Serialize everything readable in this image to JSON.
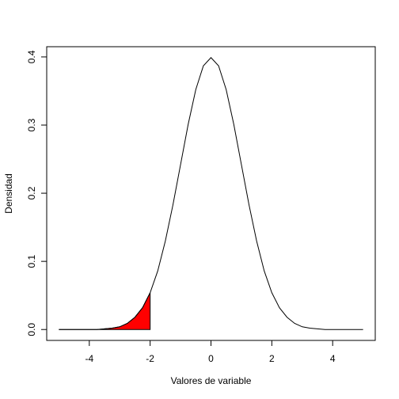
{
  "chart_data": {
    "type": "line",
    "xlabel": "Valores de variable",
    "ylabel": "Densidad",
    "x": [
      -5,
      -4.75,
      -4.5,
      -4.25,
      -4,
      -3.75,
      -3.5,
      -3.25,
      -3,
      -2.75,
      -2.5,
      -2.25,
      -2,
      -1.75,
      -1.5,
      -1.25,
      -1,
      -0.75,
      -0.5,
      -0.25,
      0,
      0.25,
      0.5,
      0.75,
      1,
      1.25,
      1.5,
      1.75,
      2,
      2.25,
      2.5,
      2.75,
      3,
      3.25,
      3.5,
      3.75,
      4,
      4.25,
      4.5,
      4.75,
      5
    ],
    "values": [
      0,
      0,
      0,
      0,
      0,
      0,
      0.001,
      0.002,
      0.004,
      0.009,
      0.018,
      0.032,
      0.054,
      0.086,
      0.13,
      0.183,
      0.242,
      0.301,
      0.352,
      0.387,
      0.399,
      0.387,
      0.352,
      0.301,
      0.242,
      0.183,
      0.13,
      0.086,
      0.054,
      0.032,
      0.018,
      0.009,
      0.004,
      0.002,
      0.001,
      0,
      0,
      0,
      0,
      0,
      0
    ],
    "color": "#000000",
    "shade_to": -2,
    "shade_color": "#ff0000",
    "xlim": [
      -5.4,
      5.4
    ],
    "xticks": [
      -4,
      -2,
      0,
      2,
      4
    ],
    "ylim": [
      -0.016,
      0.415
    ],
    "yticks": [
      {
        "value": 0,
        "label": "0.0"
      },
      0.1,
      0.2,
      0.3,
      0.4
    ]
  }
}
